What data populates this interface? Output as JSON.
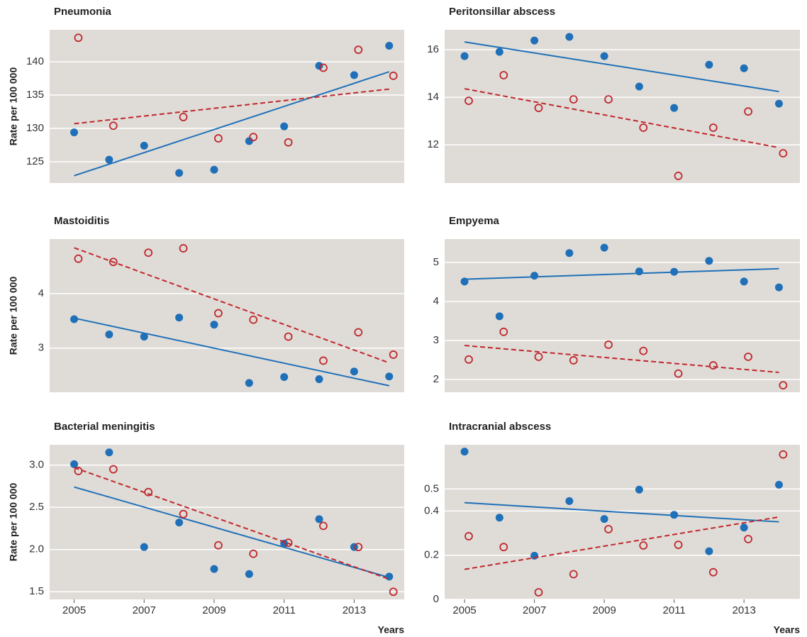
{
  "chart_data": [
    {
      "type": "scatter",
      "title": "Pneumonia",
      "ylabel": "Rate per 100 000",
      "x": [
        2005,
        2006,
        2007,
        2008,
        2009,
        2010,
        2011,
        2012,
        2013,
        2014
      ],
      "xlim": [
        2004.3,
        2014.43
      ],
      "ylim": [
        121.8,
        144.8
      ],
      "yticks": [
        125,
        130,
        135,
        140
      ],
      "grid": true,
      "series": [
        {
          "color": "#1f70b8",
          "marker": "filled",
          "values": [
            129.4,
            125.3,
            127.4,
            123.3,
            123.8,
            128.1,
            130.3,
            139.4,
            138.0,
            142.4
          ],
          "trend": [
            122.9,
            138.5
          ]
        },
        {
          "color": "#c1272d",
          "marker": "open",
          "values": [
            143.6,
            130.4,
            null,
            131.7,
            128.5,
            128.7,
            127.9,
            139.1,
            141.8,
            137.9
          ],
          "trend": [
            130.7,
            135.9
          ]
        }
      ]
    },
    {
      "type": "scatter",
      "title": "Peritonsillar abscess",
      "x": [
        2005,
        2006,
        2007,
        2008,
        2009,
        2010,
        2011,
        2012,
        2013,
        2014
      ],
      "xlim": [
        2004.43,
        2014.6
      ],
      "ylim": [
        10.39,
        16.84
      ],
      "yticks": [
        12,
        14,
        16
      ],
      "grid": true,
      "series": [
        {
          "color": "#1f70b8",
          "marker": "filled",
          "values": [
            15.73,
            15.91,
            16.39,
            16.54,
            15.73,
            14.45,
            13.55,
            15.37,
            15.22,
            13.73
          ],
          "trend": [
            16.33,
            14.24
          ]
        },
        {
          "color": "#c1272d",
          "marker": "open",
          "values": [
            13.85,
            14.93,
            13.55,
            13.91,
            13.91,
            12.72,
            10.69,
            12.72,
            13.4,
            11.64
          ],
          "trend": [
            14.36,
            11.88
          ]
        }
      ]
    },
    {
      "type": "scatter",
      "title": "Mastoiditis",
      "ylabel": "Rate per 100 000",
      "x": [
        2005,
        2006,
        2007,
        2008,
        2009,
        2010,
        2011,
        2012,
        2013,
        2014
      ],
      "xlim": [
        2004.3,
        2014.43
      ],
      "ylim": [
        2.19,
        5.0
      ],
      "yticks": [
        3,
        4
      ],
      "grid": true,
      "series": [
        {
          "color": "#1f70b8",
          "marker": "filled",
          "values": [
            3.53,
            3.25,
            3.21,
            3.56,
            3.43,
            2.36,
            2.47,
            2.43,
            2.57,
            2.48
          ],
          "trend": [
            3.55,
            2.31
          ]
        },
        {
          "color": "#c1272d",
          "marker": "open",
          "values": [
            4.64,
            4.58,
            4.75,
            4.83,
            3.64,
            3.52,
            3.21,
            2.77,
            3.29,
            2.88
          ],
          "trend": [
            4.84,
            2.73
          ]
        }
      ]
    },
    {
      "type": "scatter",
      "title": "Empyema",
      "x": [
        2005,
        2006,
        2007,
        2008,
        2009,
        2010,
        2011,
        2012,
        2013,
        2014
      ],
      "xlim": [
        2004.43,
        2014.6
      ],
      "ylim": [
        1.67,
        5.6
      ],
      "yticks": [
        2,
        3,
        4,
        5
      ],
      "grid": true,
      "series": [
        {
          "color": "#1f70b8",
          "marker": "filled",
          "values": [
            4.51,
            3.62,
            4.66,
            5.24,
            5.38,
            4.77,
            4.76,
            5.04,
            4.51,
            4.36
          ],
          "trend": [
            4.57,
            4.84
          ]
        },
        {
          "color": "#c1272d",
          "marker": "open",
          "values": [
            2.51,
            3.22,
            2.58,
            2.49,
            2.89,
            2.73,
            2.15,
            2.36,
            2.58,
            1.85
          ],
          "trend": [
            2.87,
            2.18
          ]
        }
      ]
    },
    {
      "type": "scatter",
      "title": "Bacterial meningitis",
      "ylabel": "Rate per 100 000",
      "xlabel": "Years",
      "x": [
        2005,
        2006,
        2007,
        2008,
        2009,
        2010,
        2011,
        2012,
        2013,
        2014
      ],
      "xlim": [
        2004.3,
        2014.43
      ],
      "xticks": [
        2005,
        2007,
        2009,
        2011,
        2013
      ],
      "ylim": [
        1.41,
        3.24
      ],
      "yticks": [
        {
          "value": 1.5,
          "label": "1.5"
        },
        {
          "value": 2,
          "label": "2.0"
        },
        {
          "value": 2.5,
          "label": "2.5"
        },
        {
          "value": 3,
          "label": "3.0"
        }
      ],
      "grid": true,
      "series": [
        {
          "color": "#1f70b8",
          "marker": "filled",
          "values": [
            3.01,
            3.15,
            2.03,
            2.32,
            1.77,
            1.71,
            2.07,
            2.36,
            2.03,
            1.68
          ],
          "trend": [
            2.74,
            1.67
          ]
        },
        {
          "color": "#c1272d",
          "marker": "open",
          "values": [
            2.93,
            2.95,
            2.68,
            2.42,
            2.05,
            1.95,
            2.08,
            2.28,
            2.03,
            1.5
          ],
          "trend": [
            2.97,
            1.65
          ]
        }
      ]
    },
    {
      "type": "scatter",
      "title": "Intracranial abscess",
      "xlabel": "Years",
      "x": [
        2005,
        2006,
        2007,
        2008,
        2009,
        2010,
        2011,
        2012,
        2013,
        2014
      ],
      "xlim": [
        2004.43,
        2014.6
      ],
      "xticks": [
        2005,
        2007,
        2009,
        2011,
        2013
      ],
      "ylim": [
        0,
        0.7
      ],
      "yticks": [
        0,
        0.2,
        0.4,
        0.5
      ],
      "grid": true,
      "series": [
        {
          "color": "#1f70b8",
          "marker": "filled",
          "values": [
            0.669,
            0.37,
            0.198,
            0.445,
            0.364,
            0.497,
            0.383,
            0.218,
            0.325,
            0.519
          ],
          "trend": [
            0.438,
            0.351
          ]
        },
        {
          "color": "#c1272d",
          "marker": "open",
          "values": [
            0.286,
            0.237,
            0.032,
            0.114,
            0.318,
            0.244,
            0.247,
            0.123,
            0.273,
            0.656
          ],
          "trend": [
            0.136,
            0.373
          ]
        }
      ]
    }
  ]
}
